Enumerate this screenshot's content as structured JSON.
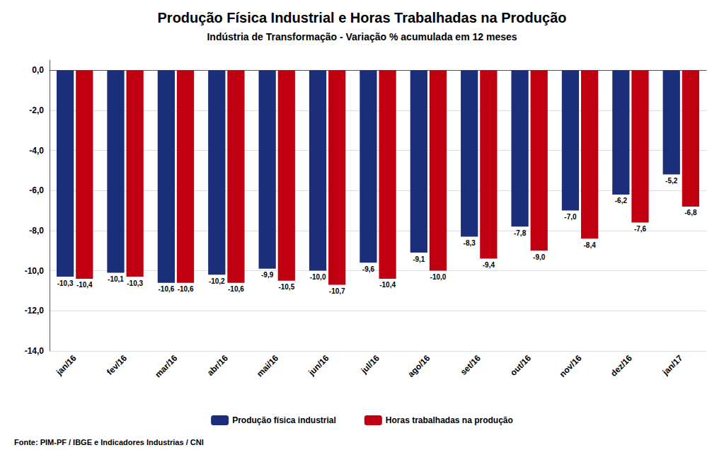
{
  "chart_data": {
    "type": "bar",
    "title": "Produção Física Industrial e Horas Trabalhadas na Produção",
    "subtitle": "Indústria de Transformação - Variação % acumulada em 12 meses",
    "source": "Fonte: PIM-PF / IBGE e Indicadores Industrias / CNI",
    "categories": [
      "jan/16",
      "fev/16",
      "mar/16",
      "abr/16",
      "mai/16",
      "jun/16",
      "jul/16",
      "ago/16",
      "set/16",
      "out/16",
      "nov/16",
      "dez/16",
      "jan/17"
    ],
    "series": [
      {
        "name": "Produção física industrial",
        "color": "#1B2E7A",
        "values": [
          -10.3,
          -10.1,
          -10.6,
          -10.2,
          -9.9,
          -10.0,
          -9.6,
          -9.1,
          -8.3,
          -7.8,
          -7.0,
          -6.2,
          -5.2
        ],
        "value_labels": [
          "-10,3",
          "-10,1",
          "-10,6",
          "-10,2",
          "-9,9",
          "-10,0",
          "-9,6",
          "-9,1",
          "-8,3",
          "-7,8",
          "-7,0",
          "-6,2",
          "-5,2"
        ]
      },
      {
        "name": "Horas trabalhadas na produção",
        "color": "#C00010",
        "values": [
          -10.4,
          -10.3,
          -10.6,
          -10.6,
          -10.5,
          -10.7,
          -10.4,
          -10.0,
          -9.4,
          -9.0,
          -8.4,
          -7.6,
          -6.8
        ],
        "value_labels": [
          "-10,4",
          "-10,3",
          "-10,6",
          "-10,6",
          "-10,5",
          "-10,7",
          "-10,4",
          "-10,0",
          "-9,4",
          "-9,0",
          "-8,4",
          "-7,6",
          "-6,8"
        ]
      }
    ],
    "ylim": [
      -14.0,
      0.5
    ],
    "yticks": [
      {
        "value": 0.0,
        "label": "0,0"
      },
      {
        "value": -2.0,
        "label": "-2,0"
      },
      {
        "value": -4.0,
        "label": "-4,0"
      },
      {
        "value": -6.0,
        "label": "-6,0"
      },
      {
        "value": -8.0,
        "label": "-8,0"
      },
      {
        "value": -10.0,
        "label": "-10,0"
      },
      {
        "value": -12.0,
        "label": "-12,0"
      },
      {
        "value": -14.0,
        "label": "-14,0"
      }
    ],
    "grid": true,
    "legend": "bottom",
    "data_labels": true
  }
}
